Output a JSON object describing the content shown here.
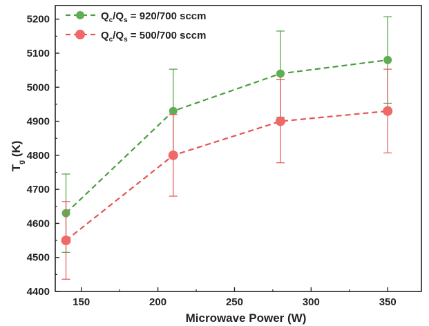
{
  "chart_data": {
    "type": "line",
    "xlabel": "Microwave Power (W)",
    "ylabel_main": "T",
    "ylabel_sub": "g",
    "ylabel_tail": " (K)",
    "xlim": [
      133,
      372
    ],
    "ylim": [
      4400,
      5240
    ],
    "x_ticks": [
      150,
      200,
      250,
      300,
      350
    ],
    "y_ticks": [
      4400,
      4500,
      4600,
      4700,
      4800,
      4900,
      5000,
      5100,
      5200
    ],
    "grid": false,
    "legend_position": "top-left",
    "series": [
      {
        "name": "Qc/Qs = 920/700 sccm",
        "legend_parts": {
          "q1": "Q",
          "s1": "c",
          "slash": "/Q",
          "s2": "s",
          "rest": " = 920/700 sccm"
        },
        "color": "#4a9e3f",
        "marker_color": "#5fae55",
        "x": [
          140,
          210,
          280,
          350
        ],
        "y": [
          4630,
          4930,
          5040,
          5080
        ],
        "err_low": [
          4515,
          4805,
          4912,
          4953
        ],
        "err_high": [
          4745,
          5053,
          5165,
          5207
        ]
      },
      {
        "name": "Qc/Qs = 500/700 sccm",
        "legend_parts": {
          "q1": "Q",
          "s1": "c",
          "slash": "/Q",
          "s2": "s",
          "rest": " = 500/700 sccm"
        },
        "color": "#e55353",
        "marker_color": "#f06868",
        "x": [
          140,
          210,
          280,
          350
        ],
        "y": [
          4550,
          4800,
          4900,
          4930
        ],
        "err_low": [
          4436,
          4680,
          4778,
          4807
        ],
        "err_high": [
          4664,
          4920,
          5022,
          5053
        ]
      }
    ]
  }
}
